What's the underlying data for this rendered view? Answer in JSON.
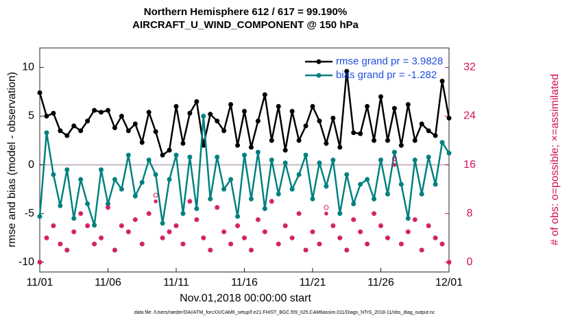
{
  "chart_data": {
    "type": "line",
    "title": "Northern Hemisphere 612 / 617 = 99.190%",
    "subtitle": "AIRCRAFT_U_WIND_COMPONENT @ 150 hPa",
    "xlabel": "Nov.01,2018 00:00:00 start",
    "ylabel": "rmse and bias (model - observation)",
    "y2label": "# of obs: o=possible; ×=assimilated",
    "footnote": "data file: /Users/raeder/DAI/ATM_forcXX/CAM6_setup/f.e21.FHIST_BGC.f09_025.CAM6assim.011/Diags_NTrS_2018-11/obs_diag_output.nc",
    "legend": "upper right",
    "xlim": [
      0,
      30
    ],
    "xticks": [
      {
        "value": 0,
        "label": "11/01"
      },
      {
        "value": 5,
        "label": "11/06"
      },
      {
        "value": 10,
        "label": "11/11"
      },
      {
        "value": 15,
        "label": "11/16"
      },
      {
        "value": 20,
        "label": "11/21"
      },
      {
        "value": 25,
        "label": "11/26"
      },
      {
        "value": 30,
        "label": "12/01"
      }
    ],
    "ylim": [
      -11,
      12
    ],
    "yticks": [
      -10,
      -5,
      0,
      5,
      10
    ],
    "y2lim": [
      -1.6,
      35.2
    ],
    "y2ticks": [
      0,
      8,
      16,
      24,
      32
    ],
    "x": [
      0,
      0.5,
      1,
      1.5,
      2,
      2.5,
      3,
      3.5,
      4,
      4.5,
      5,
      5.5,
      6,
      6.5,
      7,
      7.5,
      8,
      8.5,
      9,
      9.5,
      10,
      10.5,
      11,
      11.5,
      12,
      12.5,
      13,
      13.5,
      14,
      14.5,
      15,
      15.5,
      16,
      16.5,
      17,
      17.5,
      18,
      18.5,
      19,
      19.5,
      20,
      20.5,
      21,
      21.5,
      22,
      22.5,
      23,
      23.5,
      24,
      24.5,
      25,
      25.5,
      26,
      26.5,
      27,
      27.5,
      28,
      28.5,
      29,
      29.5,
      30
    ],
    "series": [
      {
        "name": "rmse grand pr = 3.9828",
        "color": "#000000",
        "marker": "line",
        "values": [
          7.4,
          5.0,
          5.3,
          3.5,
          3.0,
          4.0,
          3.5,
          4.5,
          5.6,
          5.4,
          5.6,
          3.8,
          5.0,
          3.5,
          4.2,
          2.3,
          5.4,
          3.4,
          1.0,
          1.5,
          6.0,
          2.2,
          5.3,
          6.5,
          2.0,
          5.2,
          4.5,
          3.5,
          6.2,
          2.0,
          5.5,
          1.8,
          4.5,
          7.2,
          2.5,
          6.0,
          1.5,
          5.5,
          2.5,
          4.0,
          6.0,
          4.5,
          2.2,
          4.8,
          1.8,
          9.6,
          3.3,
          3.2,
          6.0,
          2.5,
          7.0,
          2.5,
          5.8,
          2.0,
          6.2,
          2.5,
          4.2,
          3.5,
          3.0,
          8.6,
          4.8
        ]
      },
      {
        "name": "bias grand pr = -1.282",
        "color": "#008080",
        "marker": "line",
        "values": [
          -5.3,
          3.3,
          -1.0,
          -4.2,
          -0.5,
          -5.5,
          -1.5,
          -4.0,
          -6.2,
          -0.5,
          -4.0,
          -1.5,
          -2.5,
          1.0,
          -3.2,
          -1.8,
          0.5,
          -1.0,
          -6.0,
          -1.5,
          1.0,
          -5.0,
          0.8,
          -4.5,
          5.0,
          -3.5,
          0.8,
          -2.5,
          -1.5,
          -5.3,
          1.0,
          -3.5,
          1.3,
          -4.5,
          0.5,
          -3.0,
          0.2,
          -2.5,
          -1.0,
          1.0,
          -3.5,
          0.2,
          -2.2,
          0.5,
          -5.0,
          -1.0,
          -4.0,
          -2.0,
          -1.5,
          -3.5,
          0.5,
          -3.0,
          1.3,
          -2.0,
          -5.5,
          0.5,
          -3.0,
          0.8,
          -2.0,
          2.3,
          1.2
        ]
      },
      {
        "color": "#d0105a",
        "marker": "o",
        "axis": "y2",
        "values": [
          0,
          4,
          6,
          3,
          2,
          5,
          8,
          6,
          3,
          4,
          9,
          2,
          6,
          5,
          7,
          3,
          8,
          11,
          4,
          5,
          6,
          3,
          10,
          7,
          4,
          2,
          9,
          5,
          3,
          6,
          4,
          2,
          7,
          5,
          10,
          3,
          6,
          4,
          8,
          2,
          5,
          3,
          9,
          6,
          4,
          2,
          7,
          5,
          3,
          8,
          6,
          4,
          17,
          3,
          5,
          7,
          2,
          6,
          4,
          3,
          0
        ]
      },
      {
        "color": "#d0105a",
        "marker": "*",
        "axis": "y2",
        "values": [
          0,
          4,
          6,
          3,
          2,
          5,
          8,
          6,
          3,
          4,
          9,
          2,
          6,
          5,
          7,
          3,
          8,
          10,
          4,
          5,
          6,
          3,
          10,
          7,
          4,
          2,
          9,
          5,
          3,
          6,
          4,
          2,
          7,
          5,
          10,
          3,
          6,
          4,
          8,
          2,
          5,
          3,
          8,
          6,
          4,
          2,
          7,
          5,
          3,
          8,
          6,
          4,
          16,
          3,
          5,
          7,
          2,
          6,
          4,
          3,
          0
        ]
      }
    ]
  }
}
